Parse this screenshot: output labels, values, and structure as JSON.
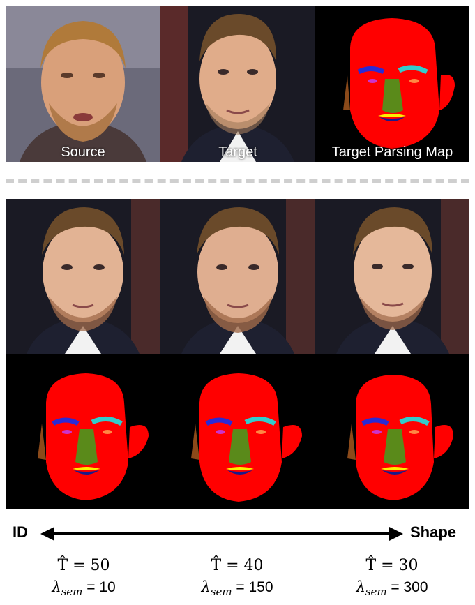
{
  "top_row": {
    "source_label": "Source",
    "target_label": "Target",
    "parsing_label": "Target Parsing Map"
  },
  "axis": {
    "left_label": "ID",
    "right_label": "Shape"
  },
  "settings": [
    {
      "t_symbol": "T̂",
      "t_value": "= 50",
      "lambda_symbol": "λ",
      "lambda_sub": "sem",
      "lambda_value": " = 10"
    },
    {
      "t_symbol": "T̂",
      "t_value": "= 40",
      "lambda_symbol": "λ",
      "lambda_sub": "sem",
      "lambda_value": " = 150"
    },
    {
      "t_symbol": "T̂",
      "t_value": "= 30",
      "lambda_symbol": "λ",
      "lambda_sub": "sem",
      "lambda_value": " = 300"
    }
  ],
  "colors": {
    "skin_mask": "#ff0000",
    "brow": "#2a2ad4",
    "brow_right": "#33cccc",
    "eye_left": "#cc33cc",
    "eye_right": "#ff8844",
    "nose": "#5a8a1a",
    "lip_upper": "#ffee00",
    "lip_lower": "#1a1a8a",
    "ear": "#8b4a1a"
  }
}
